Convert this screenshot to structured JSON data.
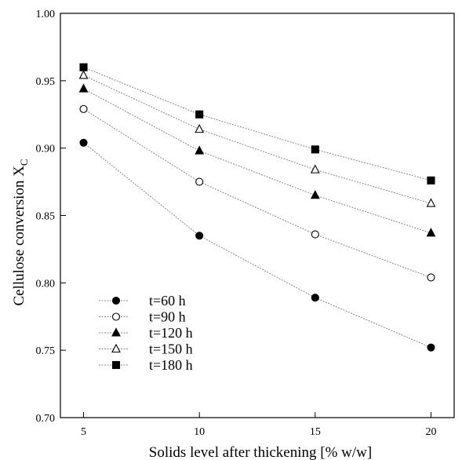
{
  "chart_data": {
    "type": "line",
    "title": "",
    "xlabel": "Solids level after thickening [% w/w]",
    "ylabel": "Cellulose conversion X",
    "ylabel_subscript": "C",
    "x": [
      5,
      10,
      15,
      20
    ],
    "xticks": [
      "5",
      "10",
      "15",
      "20"
    ],
    "xlim": [
      4,
      21
    ],
    "ylim": [
      0.7,
      1.0
    ],
    "yticks": [
      "0.70",
      "0.75",
      "0.80",
      "0.85",
      "0.90",
      "0.95",
      "1.00"
    ],
    "grid": false,
    "legend_position": "bottom-left",
    "series": [
      {
        "name": "t=60 h",
        "marker": "filled-circle",
        "values": [
          0.904,
          0.835,
          0.789,
          0.752
        ]
      },
      {
        "name": "t=90 h",
        "marker": "open-circle",
        "values": [
          0.929,
          0.875,
          0.836,
          0.804
        ]
      },
      {
        "name": "t=120 h",
        "marker": "filled-triangle",
        "values": [
          0.944,
          0.898,
          0.865,
          0.837
        ]
      },
      {
        "name": "t=150 h",
        "marker": "open-triangle",
        "values": [
          0.954,
          0.914,
          0.884,
          0.859
        ]
      },
      {
        "name": "t=180 h",
        "marker": "filled-square",
        "values": [
          0.96,
          0.925,
          0.899,
          0.876
        ]
      }
    ]
  }
}
